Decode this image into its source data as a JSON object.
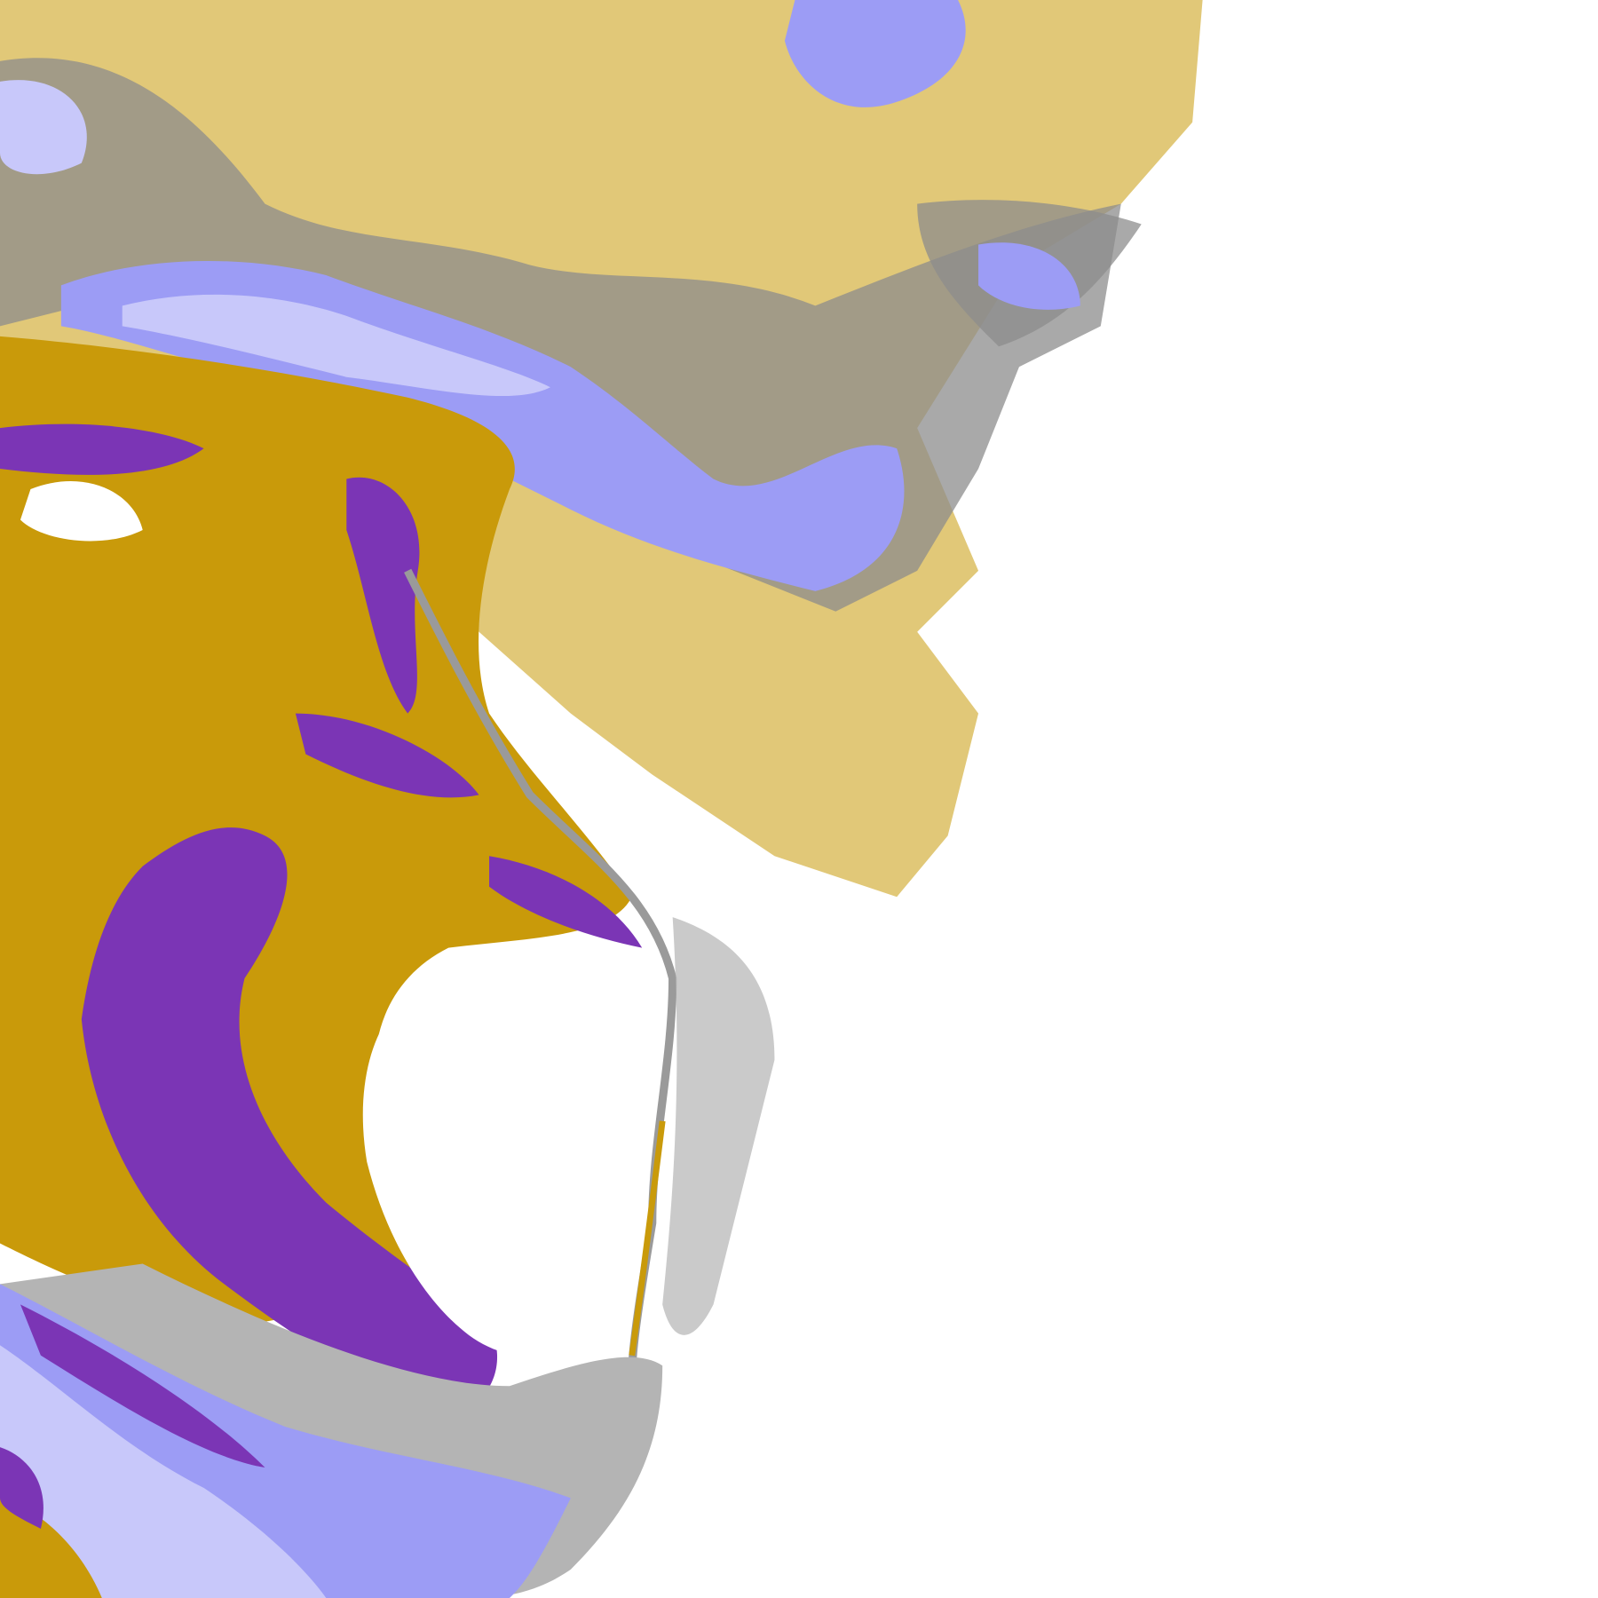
{
  "map": {
    "kind": "satellite cloud classification",
    "background_color": "#ffffff",
    "class_colors": {
      "gold": "#c99a0a",
      "purple": "#7b35b5",
      "lavender": "#9c9cf5",
      "pale_lavender": "#c8c8fa",
      "gray": "#8c8c8c",
      "light_gray": "#b4b4b4",
      "magenta": "#d050e0"
    }
  }
}
